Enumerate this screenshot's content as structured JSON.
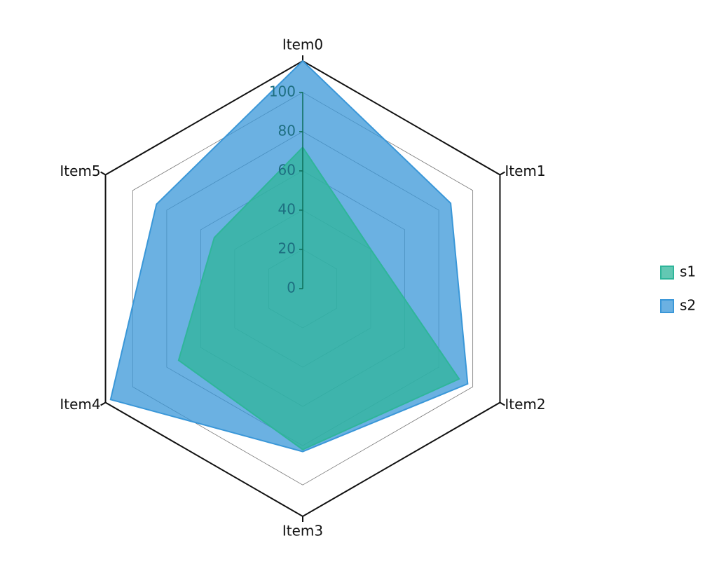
{
  "chart_data": {
    "type": "radar",
    "categories": [
      "Item0",
      "Item1",
      "Item2",
      "Item3",
      "Item4",
      "Item5"
    ],
    "series": [
      {
        "name": "s2",
        "color": "#3a97d8",
        "values": [
          116,
          87,
          97,
          83,
          113,
          86
        ]
      },
      {
        "name": "s1",
        "color": "#2fb59a",
        "values": [
          72,
          40,
          92,
          82,
          73,
          52
        ]
      }
    ],
    "ylim": [
      0,
      116
    ],
    "yticks": [
      0,
      20,
      40,
      60,
      80,
      100
    ],
    "grid": true
  }
}
